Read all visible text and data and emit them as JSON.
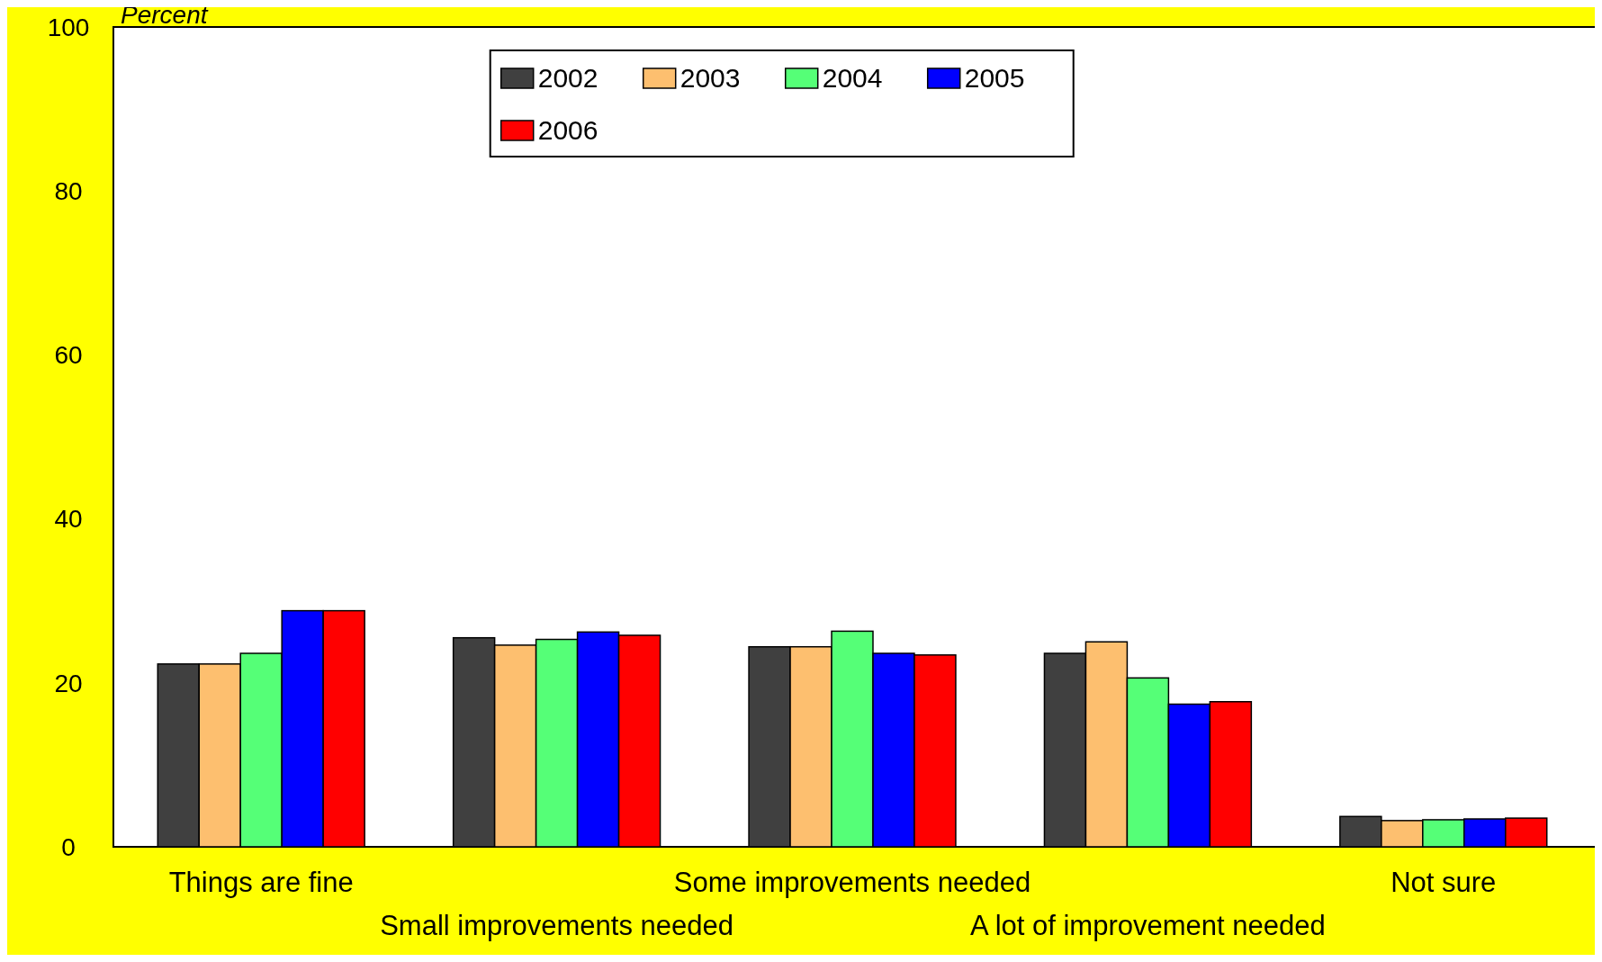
{
  "chart_data": {
    "type": "bar",
    "ylabel": "Percent",
    "categories": [
      "Things are fine",
      "Small improvements needed",
      "Some improvements needed",
      "A lot of improvement needed",
      "Not sure"
    ],
    "series": [
      {
        "name": "2002",
        "color": "#404040",
        "values": [
          22.3,
          25.5,
          24.4,
          23.6,
          3.7
        ]
      },
      {
        "name": "2003",
        "color": "#fdbf6f",
        "values": [
          22.3,
          24.6,
          24.4,
          25.0,
          3.2
        ]
      },
      {
        "name": "2004",
        "color": "#55ff77",
        "values": [
          23.6,
          25.3,
          26.3,
          20.6,
          3.3
        ]
      },
      {
        "name": "2005",
        "color": "#0000ff",
        "values": [
          28.8,
          26.2,
          23.6,
          17.4,
          3.4
        ]
      },
      {
        "name": "2006",
        "color": "#ff0000",
        "values": [
          28.8,
          25.8,
          23.4,
          17.7,
          3.5
        ]
      }
    ],
    "ylim": [
      0,
      100
    ],
    "yticks": [
      0,
      20,
      40,
      60,
      80,
      100
    ],
    "grid": false,
    "legend": "top"
  }
}
